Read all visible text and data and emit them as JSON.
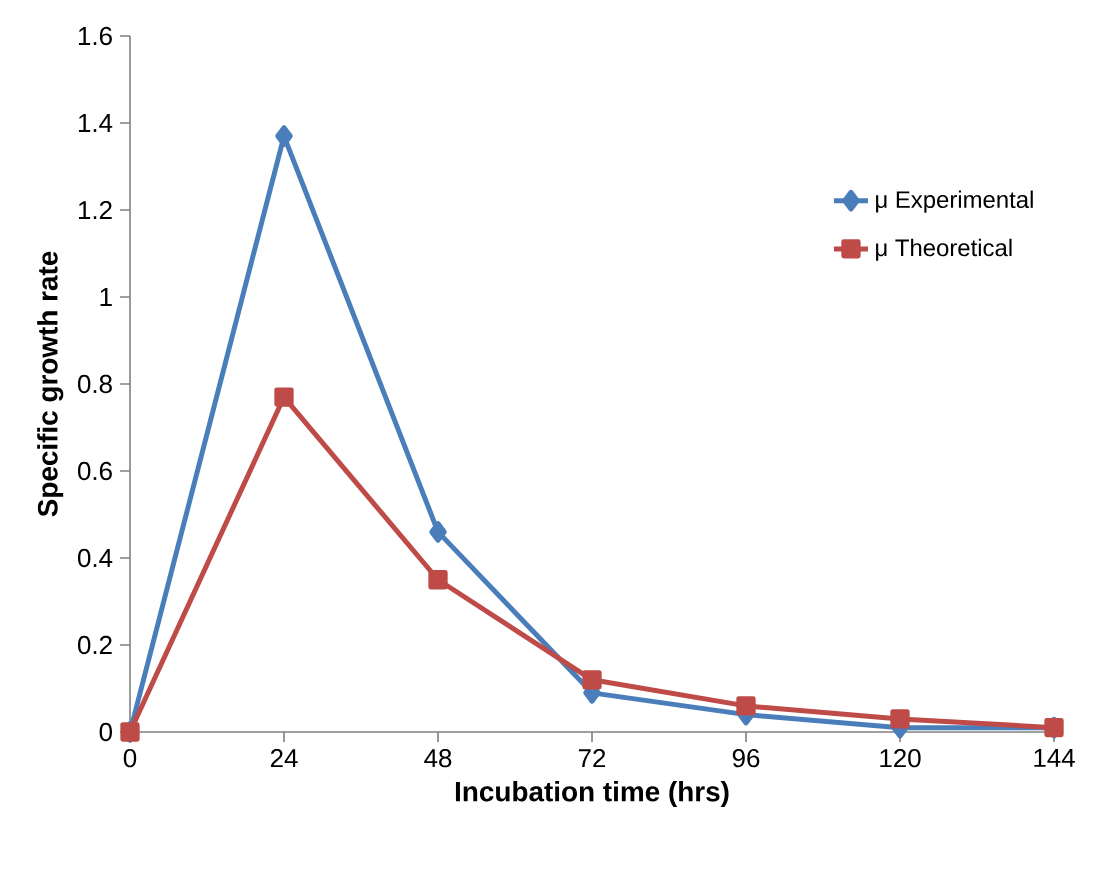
{
  "chart_data": {
    "type": "line",
    "xlabel": "Incubation time (hrs)",
    "ylabel": "Specific growth rate",
    "x": [
      0,
      24,
      48,
      72,
      96,
      120,
      144
    ],
    "series": [
      {
        "name": "μ Experimental",
        "color": "#4a7ebb",
        "marker": "diamond",
        "values": [
          0,
          1.37,
          0.46,
          0.09,
          0.04,
          0.01,
          0.01
        ]
      },
      {
        "name": "μ Theoretical",
        "color": "#be4b48",
        "marker": "square",
        "values": [
          0,
          0.77,
          0.35,
          0.12,
          0.06,
          0.03,
          0.01
        ]
      }
    ],
    "xlim": [
      0,
      144
    ],
    "xticks": [
      0,
      24,
      48,
      72,
      96,
      120,
      144
    ],
    "ylim": [
      0,
      1.6
    ],
    "yticks": [
      0,
      0.2,
      0.4,
      0.6,
      0.8,
      1,
      1.2,
      1.4,
      1.6
    ],
    "grid": false,
    "legend": "top right",
    "line_style": "solid"
  }
}
